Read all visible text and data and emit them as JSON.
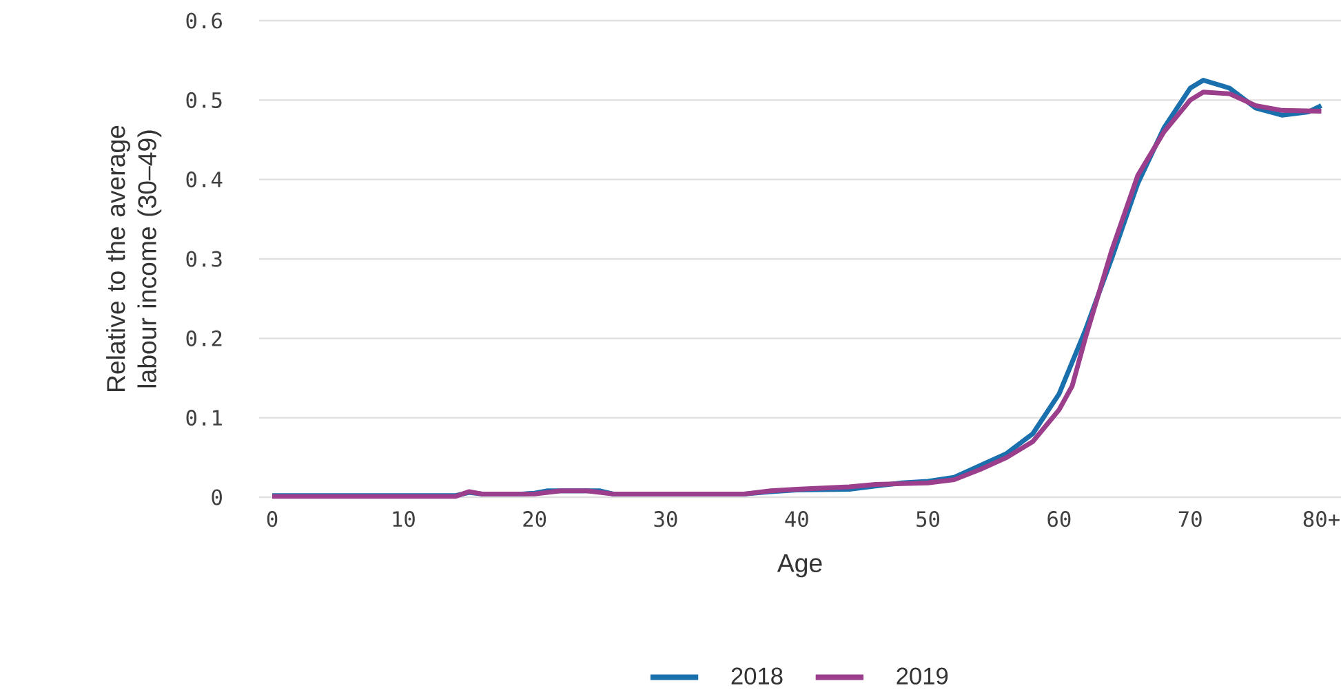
{
  "chart_data": {
    "type": "line",
    "xlabel": "Age",
    "ylabel": "Relative to the average labour income (30–49)",
    "xlim": [
      -1,
      81.5
    ],
    "ylim": [
      0,
      0.6
    ],
    "xticks": [
      0,
      10,
      20,
      30,
      40,
      50,
      60,
      70,
      {
        "value": 80,
        "label": "80+"
      }
    ],
    "yticks": [
      0,
      0.1,
      0.2,
      0.3,
      0.4,
      0.5,
      0.6
    ],
    "grid": "y",
    "legend": "bottom",
    "series": [
      {
        "name": "2018",
        "color": "#1a6fad",
        "x": [
          0,
          14,
          15,
          16,
          19,
          20,
          21,
          25,
          26,
          36,
          38,
          40,
          44,
          46,
          48,
          50,
          52,
          54,
          56,
          58,
          60,
          62,
          64,
          66,
          68,
          70,
          71,
          73,
          75,
          77,
          79,
          80
        ],
        "values": [
          0.002,
          0.002,
          0.006,
          0.004,
          0.004,
          0.005,
          0.008,
          0.008,
          0.004,
          0.004,
          0.007,
          0.009,
          0.01,
          0.014,
          0.018,
          0.02,
          0.025,
          0.04,
          0.055,
          0.08,
          0.13,
          0.21,
          0.3,
          0.395,
          0.465,
          0.515,
          0.525,
          0.515,
          0.49,
          0.481,
          0.485,
          0.493
        ]
      },
      {
        "name": "2019",
        "color": "#9b3f8c",
        "x": [
          0,
          14,
          15,
          16,
          20,
          22,
          24,
          26,
          36,
          38,
          40,
          44,
          46,
          48,
          50,
          52,
          54,
          56,
          58,
          60,
          61,
          62,
          64,
          66,
          68,
          70,
          71,
          73,
          75,
          77,
          80
        ],
        "values": [
          0.001,
          0.001,
          0.007,
          0.004,
          0.004,
          0.008,
          0.008,
          0.004,
          0.004,
          0.008,
          0.01,
          0.013,
          0.016,
          0.017,
          0.018,
          0.022,
          0.035,
          0.05,
          0.07,
          0.11,
          0.14,
          0.2,
          0.31,
          0.405,
          0.46,
          0.5,
          0.51,
          0.508,
          0.493,
          0.487,
          0.486
        ]
      }
    ]
  }
}
